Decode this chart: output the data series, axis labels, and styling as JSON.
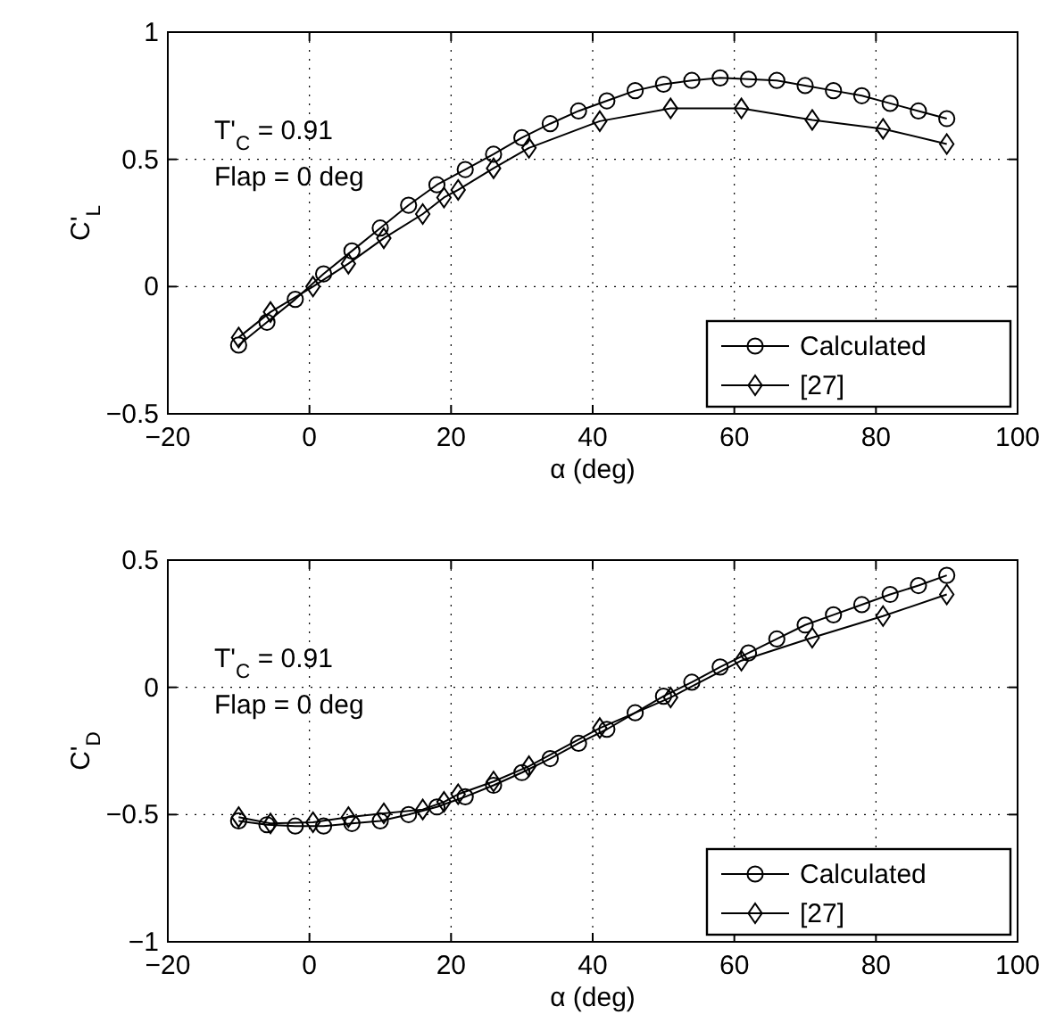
{
  "chart_data": [
    {
      "type": "line",
      "xlabel": "α (deg)",
      "ylabel": "C'$_{L}$",
      "xlim": [
        -20,
        100
      ],
      "xticks": [
        -20,
        0,
        20,
        40,
        60,
        80,
        100
      ],
      "ylim": [
        -0.5,
        1
      ],
      "yticks": [
        -0.5,
        0,
        0.5,
        1
      ],
      "grid": true,
      "legend": "bottom right",
      "line_style": "solid",
      "annotations": [
        "T'$_{C}$ = 0.91",
        "Flap = 0 deg"
      ],
      "series": [
        {
          "name": "Calculated",
          "color": "#000000",
          "marker": "circle",
          "x": [
            -10,
            -6,
            -2,
            2,
            6,
            10,
            14,
            18,
            22,
            26,
            30,
            34,
            38,
            42,
            46,
            50,
            54,
            58,
            62,
            66,
            70,
            74,
            78,
            82,
            86,
            90
          ],
          "values": [
            -0.23,
            -0.14,
            -0.05,
            0.05,
            0.14,
            0.23,
            0.32,
            0.4,
            0.46,
            0.52,
            0.585,
            0.64,
            0.69,
            0.73,
            0.77,
            0.795,
            0.81,
            0.82,
            0.815,
            0.81,
            0.79,
            0.77,
            0.75,
            0.72,
            0.69,
            0.66
          ]
        },
        {
          "name": "[27]",
          "color": "#000000",
          "marker": "diamond",
          "x": [
            -10,
            -5.5,
            0.5,
            5.5,
            10.5,
            16,
            19,
            21,
            26,
            31,
            41,
            51,
            61,
            71,
            81,
            90
          ],
          "values": [
            -0.2,
            -0.1,
            0,
            0.09,
            0.19,
            0.285,
            0.35,
            0.38,
            0.465,
            0.545,
            0.65,
            0.7,
            0.7,
            0.655,
            0.62,
            0.56
          ]
        }
      ]
    },
    {
      "type": "line",
      "xlabel": "α (deg)",
      "ylabel": "C'$_{D}$",
      "xlim": [
        -20,
        100
      ],
      "xticks": [
        -20,
        0,
        20,
        40,
        60,
        80,
        100
      ],
      "ylim": [
        -1,
        0.5
      ],
      "yticks": [
        -1,
        -0.5,
        0,
        0.5
      ],
      "grid": true,
      "legend": "bottom right",
      "line_style": "solid",
      "annotations": [
        "T'$_{C}$ = 0.91",
        "Flap = 0 deg"
      ],
      "series": [
        {
          "name": "Calculated",
          "color": "#000000",
          "marker": "circle",
          "x": [
            -10,
            -6,
            -2,
            2,
            6,
            10,
            14,
            18,
            22,
            26,
            30,
            34,
            38,
            42,
            46,
            50,
            54,
            58,
            62,
            66,
            70,
            74,
            78,
            82,
            86,
            90
          ],
          "values": [
            -0.525,
            -0.54,
            -0.545,
            -0.545,
            -0.535,
            -0.525,
            -0.5,
            -0.47,
            -0.43,
            -0.385,
            -0.335,
            -0.28,
            -0.22,
            -0.165,
            -0.1,
            -0.035,
            0.02,
            0.08,
            0.135,
            0.19,
            0.245,
            0.285,
            0.325,
            0.365,
            0.4,
            0.44
          ]
        },
        {
          "name": "[27]",
          "color": "#000000",
          "marker": "diamond",
          "x": [
            -10,
            -5.5,
            0.5,
            5.5,
            10.5,
            16,
            19,
            21,
            26,
            31,
            41,
            51,
            61,
            71,
            81,
            90
          ],
          "values": [
            -0.51,
            -0.535,
            -0.53,
            -0.51,
            -0.495,
            -0.48,
            -0.45,
            -0.42,
            -0.37,
            -0.31,
            -0.16,
            -0.04,
            0.105,
            0.195,
            0.28,
            0.365
          ]
        }
      ]
    }
  ]
}
